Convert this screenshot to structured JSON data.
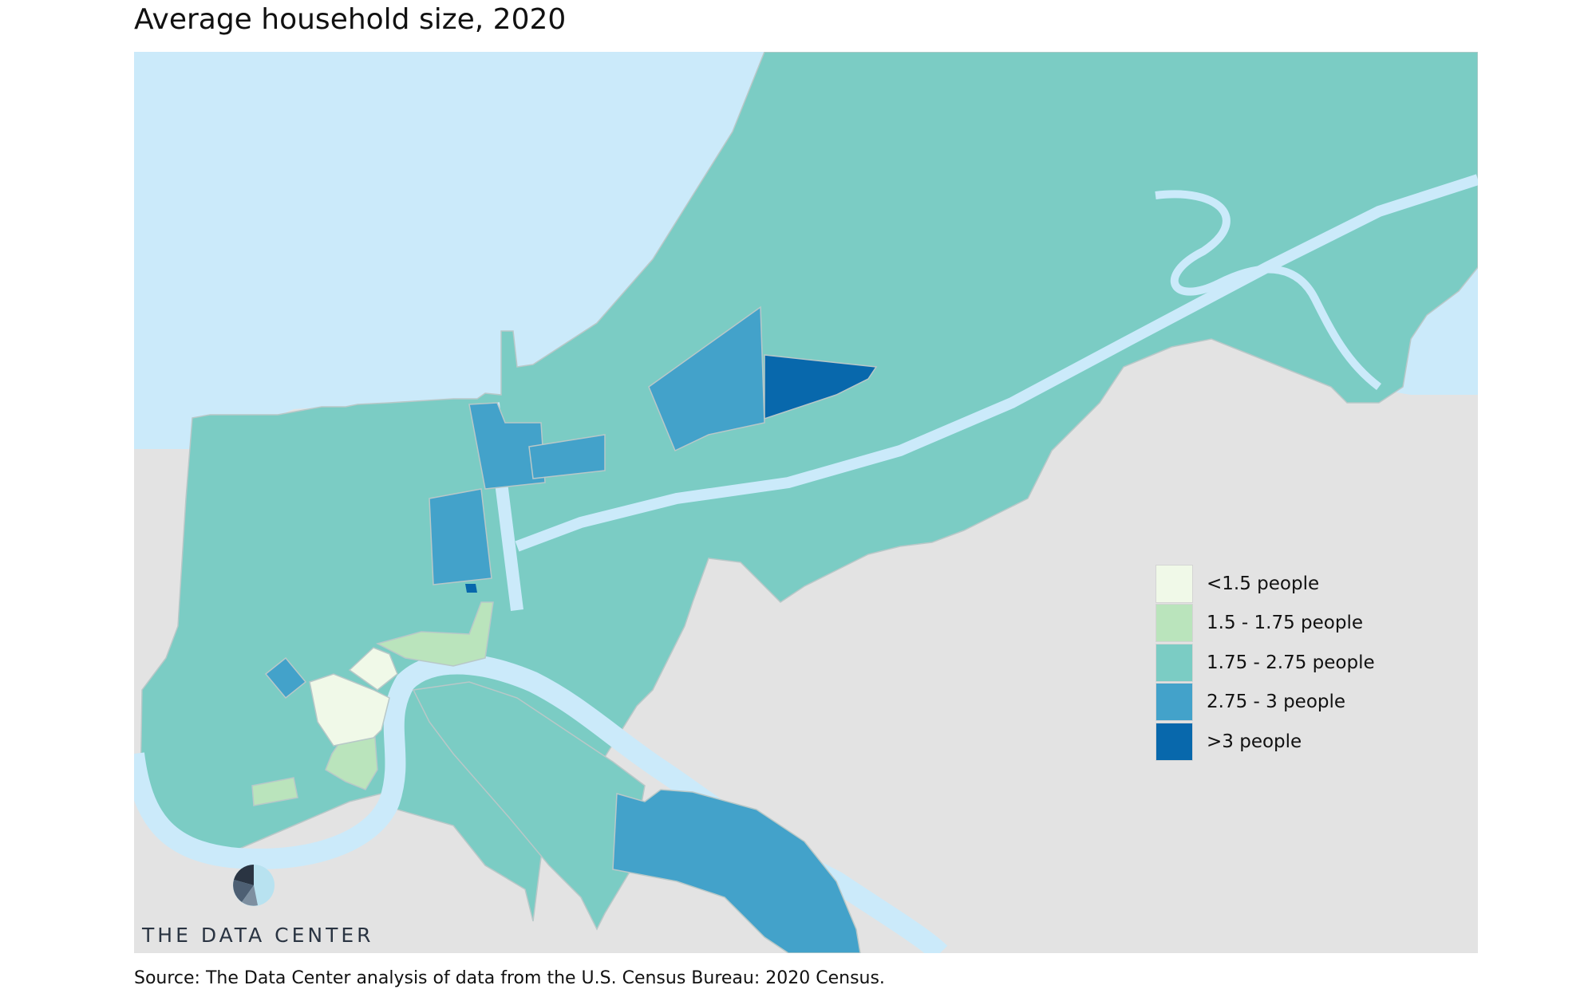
{
  "title": "Average household size, 2020",
  "source": "Source: The Data Center analysis of data from the U.S. Census Bureau: 2020 Census.",
  "logo": {
    "text": "THE DATA CENTER",
    "icon": "pie-logo-icon"
  },
  "colors": {
    "water": "#cbeafa",
    "land": "#e3e3e3",
    "boundary": "#b8c8c8"
  },
  "legend": {
    "items": [
      {
        "label": "<1.5 people",
        "color": "#f0f9e8"
      },
      {
        "label": "1.5 - 1.75 people",
        "color": "#bae4bc"
      },
      {
        "label": "1.75 - 2.75 people",
        "color": "#7bccc4"
      },
      {
        "label": "2.75 - 3 people",
        "color": "#43a2ca"
      },
      {
        "label": ">3 people",
        "color": "#0868ac"
      }
    ]
  }
}
